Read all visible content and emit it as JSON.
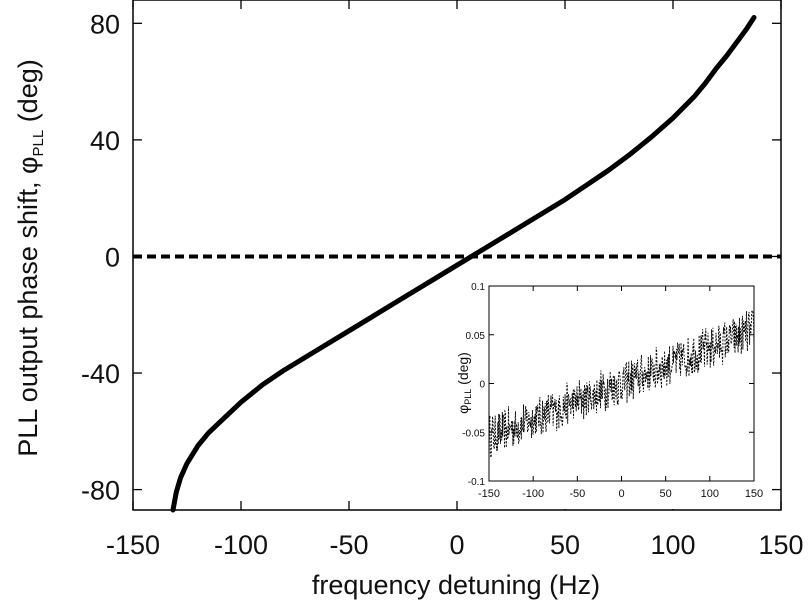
{
  "chart_data": [
    {
      "type": "line",
      "xlabel": "frequency detuning (Hz)",
      "ylabel_main": "PLL output phase shift, φ",
      "ylabel_sub": "PLL",
      "ylabel_unit": " (deg)",
      "xlim": [
        -150,
        150
      ],
      "ylim": [
        -87,
        88
      ],
      "xticks": [
        -150,
        -100,
        -50,
        0,
        50,
        100,
        150
      ],
      "yticks": [
        -80,
        -40,
        0,
        40,
        80
      ],
      "xtick_labels": [
        "-150",
        "-100",
        "-50",
        "0",
        "50",
        "100",
        "150"
      ],
      "ytick_labels": [
        "-80",
        "-40",
        "0",
        "40",
        "80"
      ],
      "series": [
        {
          "x": [
            -131.5,
            -130,
            -128,
            -125,
            -120,
            -115,
            -110,
            -100,
            -90,
            -80,
            -70,
            -60,
            -50,
            -40,
            -30,
            -20,
            -10,
            0,
            10,
            20,
            30,
            40,
            50,
            60,
            70,
            80,
            90,
            100,
            110,
            115,
            120,
            125,
            130,
            134,
            137.5
          ],
          "y": [
            -87,
            -81,
            -76,
            -71,
            -65,
            -60.5,
            -57,
            -50,
            -44,
            -39,
            -34.5,
            -30,
            -25.5,
            -21,
            -16.5,
            -12,
            -7.5,
            -3,
            1.5,
            6,
            10.5,
            15,
            19.5,
            24.5,
            29.5,
            35,
            41,
            47.5,
            55,
            59.5,
            64.5,
            69,
            74,
            78,
            82
          ],
          "color": "#000000"
        }
      ],
      "reference_line": {
        "y": 0,
        "style": "dashed",
        "color": "#000000"
      },
      "grid": false
    },
    {
      "type": "scatter",
      "role": "inset",
      "ylabel_main": "φ",
      "ylabel_sub": "PLL",
      "ylabel_unit": " (deg)",
      "xlim": [
        -150,
        150
      ],
      "ylim": [
        -0.1,
        0.1
      ],
      "xticks": [
        -150,
        -100,
        -50,
        0,
        50,
        100,
        150
      ],
      "yticks": [
        -0.1,
        -0.05,
        0,
        0.05,
        0.1
      ],
      "xtick_labels": [
        "-150",
        "-100",
        "-50",
        "0",
        "50",
        "100",
        "150"
      ],
      "ytick_labels": [
        "-0.1",
        "-0.05",
        "0",
        "0.05",
        "0.1"
      ],
      "trend": {
        "x": [
          -150,
          150
        ],
        "y": [
          -0.055,
          0.055
        ]
      },
      "noise_amplitude": 0.02,
      "point_count": 600,
      "color": "#000000",
      "grid": false
    }
  ]
}
